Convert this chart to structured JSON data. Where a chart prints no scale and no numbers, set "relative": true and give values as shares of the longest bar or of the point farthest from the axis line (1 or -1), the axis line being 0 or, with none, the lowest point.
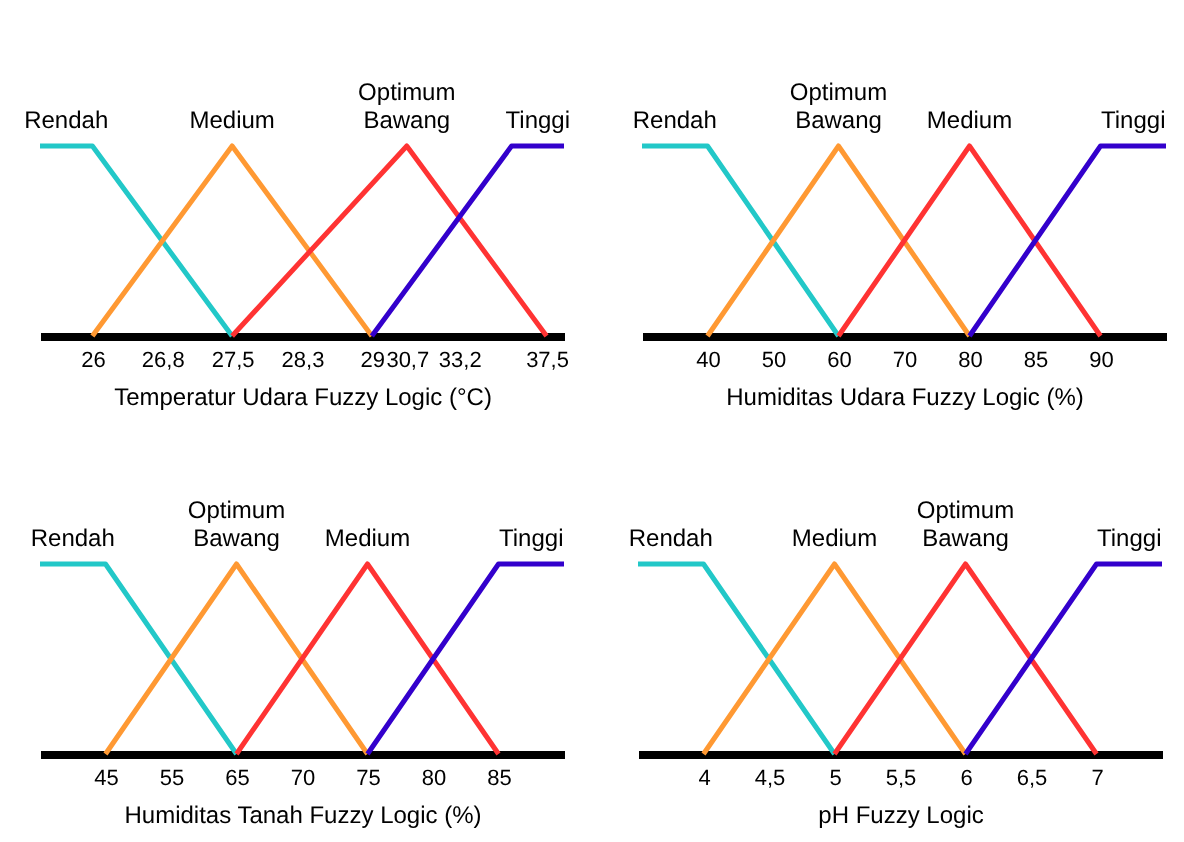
{
  "chart_data": [
    {
      "type": "line",
      "relative": true,
      "xlabel": "Temperatur Udara Fuzzy Logic (°C)",
      "categories": [
        null,
        null,
        null,
        "26",
        null,
        null,
        null,
        "26,8",
        null,
        null,
        null,
        "27,5",
        null,
        null,
        null,
        "28,3",
        null,
        null,
        null,
        "29",
        null,
        "30,7",
        null,
        null,
        "33,2",
        null,
        null,
        null,
        null,
        "37,5",
        null
      ],
      "series": [
        {
          "name": "Rendah",
          "color": "#22c8c8",
          "values": [
            1,
            null,
            null,
            1,
            null,
            null,
            null,
            null,
            null,
            null,
            null,
            0,
            null,
            null,
            null,
            null,
            null,
            null,
            null,
            null,
            null,
            null,
            null,
            null,
            null,
            null,
            null,
            null,
            null,
            null,
            null
          ]
        },
        {
          "name": "Medium",
          "color": "#ff9933",
          "values": [
            null,
            null,
            null,
            0,
            null,
            null,
            null,
            null,
            null,
            null,
            null,
            1,
            null,
            null,
            null,
            null,
            null,
            null,
            null,
            0,
            null,
            null,
            null,
            null,
            null,
            null,
            null,
            null,
            null,
            null,
            null
          ]
        },
        {
          "name": "Optimum Bawang",
          "color": "#ff3333",
          "values": [
            null,
            null,
            null,
            null,
            null,
            null,
            null,
            null,
            null,
            null,
            null,
            0,
            null,
            null,
            null,
            null,
            null,
            null,
            null,
            null,
            null,
            1,
            null,
            null,
            null,
            null,
            null,
            null,
            null,
            0,
            null
          ]
        },
        {
          "name": "Tinggi",
          "color": "#3300cc",
          "values": [
            null,
            null,
            null,
            null,
            null,
            null,
            null,
            null,
            null,
            null,
            null,
            null,
            null,
            null,
            null,
            null,
            null,
            null,
            null,
            0,
            null,
            null,
            null,
            null,
            null,
            null,
            null,
            1,
            null,
            null,
            1
          ]
        }
      ]
    },
    {
      "type": "line",
      "relative": true,
      "xlabel": "Humiditas Udara Fuzzy Logic (%)",
      "categories": [
        null,
        "40",
        "50",
        "60",
        "70",
        "80",
        "85",
        "90",
        null
      ],
      "series": [
        {
          "name": "Rendah",
          "color": "#22c8c8",
          "values": [
            1,
            1,
            0.5,
            0,
            null,
            null,
            null,
            null,
            null
          ]
        },
        {
          "name": "Optimum Bawang",
          "color": "#ff9933",
          "values": [
            null,
            0,
            0.5,
            1,
            0.5,
            0,
            null,
            null,
            null
          ]
        },
        {
          "name": "Medium",
          "color": "#ff3333",
          "values": [
            null,
            null,
            null,
            0,
            0.5,
            1,
            0.5,
            0,
            null
          ]
        },
        {
          "name": "Tinggi",
          "color": "#3300cc",
          "values": [
            null,
            null,
            null,
            null,
            null,
            0,
            0.5,
            1,
            1
          ]
        }
      ]
    },
    {
      "type": "line",
      "relative": true,
      "xlabel": "Humiditas Tanah Fuzzy Logic (%)",
      "categories": [
        null,
        "45",
        "55",
        "65",
        "70",
        "75",
        "80",
        "85",
        null
      ],
      "series": [
        {
          "name": "Rendah",
          "color": "#22c8c8",
          "values": [
            1,
            1,
            0.5,
            0,
            null,
            null,
            null,
            null,
            null
          ]
        },
        {
          "name": "Optimum Bawang",
          "color": "#ff9933",
          "values": [
            null,
            0,
            0.5,
            1,
            0.5,
            0,
            null,
            null,
            null
          ]
        },
        {
          "name": "Medium",
          "color": "#ff3333",
          "values": [
            null,
            null,
            null,
            0,
            0.5,
            1,
            0.5,
            0,
            null
          ]
        },
        {
          "name": "Tinggi",
          "color": "#3300cc",
          "values": [
            null,
            null,
            null,
            null,
            null,
            0,
            0.5,
            1,
            1
          ]
        }
      ]
    },
    {
      "type": "line",
      "relative": true,
      "xlabel": "pH Fuzzy Logic",
      "categories": [
        null,
        "4",
        "4,5",
        "5",
        "5,5",
        "6",
        "6,5",
        "7",
        null
      ],
      "series": [
        {
          "name": "Rendah",
          "color": "#22c8c8",
          "values": [
            1,
            1,
            0.5,
            0,
            null,
            null,
            null,
            null,
            null
          ]
        },
        {
          "name": "Medium",
          "color": "#ff9933",
          "values": [
            null,
            0,
            0.5,
            1,
            0.5,
            0,
            null,
            null,
            null
          ]
        },
        {
          "name": "Optimum Bawang",
          "color": "#ff3333",
          "values": [
            null,
            null,
            null,
            0,
            0.5,
            1,
            0.5,
            0,
            null
          ]
        },
        {
          "name": "Tinggi",
          "color": "#3300cc",
          "values": [
            null,
            null,
            null,
            null,
            null,
            0,
            0.5,
            1,
            1
          ]
        }
      ]
    }
  ]
}
